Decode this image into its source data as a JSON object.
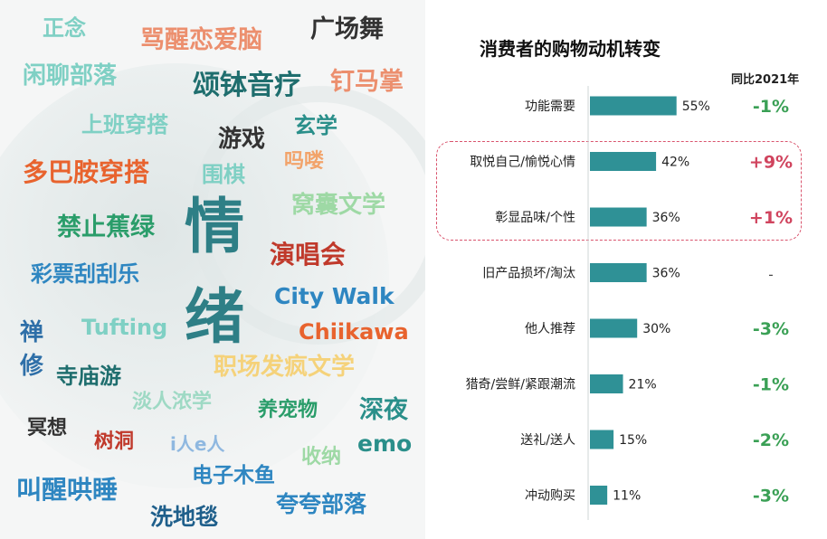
{
  "word_cloud": {
    "center_chars": [
      "情",
      "绪"
    ],
    "words": [
      {
        "text": "正念",
        "color": "#7fd0c4"
      },
      {
        "text": "骂醒恋爱脑",
        "color": "#ec8f6e"
      },
      {
        "text": "广场舞",
        "color": "#333333"
      },
      {
        "text": "闲聊部落",
        "color": "#7fd0c4"
      },
      {
        "text": "颂钵音疗",
        "color": "#1f6e6e"
      },
      {
        "text": "钉马掌",
        "color": "#ec8f6e"
      },
      {
        "text": "上班穿搭",
        "color": "#7fd0c4"
      },
      {
        "text": "游戏",
        "color": "#333333"
      },
      {
        "text": "玄学",
        "color": "#2a8f8a"
      },
      {
        "text": "多巴胺穿搭",
        "color": "#e8632e"
      },
      {
        "text": "吗喽",
        "color": "#f2a36a"
      },
      {
        "text": "围棋",
        "color": "#7fd0c4"
      },
      {
        "text": "窝囊文学",
        "color": "#9ed9a5"
      },
      {
        "text": "禁止蕉绿",
        "color": "#2a9d6a"
      },
      {
        "text": "演唱会",
        "color": "#c0392b"
      },
      {
        "text": "彩票刮刮乐",
        "color": "#2e86c1"
      },
      {
        "text": "City Walk",
        "color": "#2e86c1"
      },
      {
        "text": "Tufting",
        "color": "#7fd0c4"
      },
      {
        "text": "Chiikawa",
        "color": "#e8632e"
      },
      {
        "text": "禅",
        "color": "#2e6fa8"
      },
      {
        "text": "修",
        "color": "#2e6fa8"
      },
      {
        "text": "寺庙游",
        "color": "#1f6e6e"
      },
      {
        "text": "职场发疯文学",
        "color": "#f5d27a"
      },
      {
        "text": "淡人浓学",
        "color": "#9ed9c4"
      },
      {
        "text": "养宠物",
        "color": "#2a9d6a"
      },
      {
        "text": "深夜",
        "color": "#2a8f8a"
      },
      {
        "text": "冥想",
        "color": "#333333"
      },
      {
        "text": "树洞",
        "color": "#c0392b"
      },
      {
        "text": "i人e人",
        "color": "#8fb8e0"
      },
      {
        "text": "emo",
        "color": "#2a8f8a"
      },
      {
        "text": "电子木鱼",
        "color": "#2e86c1"
      },
      {
        "text": "收纳",
        "color": "#9ed9a5"
      },
      {
        "text": "叫醒哄睡",
        "color": "#2e86c1"
      },
      {
        "text": "洗地毯",
        "color": "#1f5f8b"
      },
      {
        "text": "夸夸部落",
        "color": "#2e86c1"
      }
    ]
  },
  "chart": {
    "title": "消费者的购物动机转变",
    "yoy_header": "同比2021年",
    "bar_color": "#2f9196",
    "yoy_negative_color": "#3aa055",
    "yoy_positive_color": "#d0445e"
  },
  "chart_data": {
    "type": "bar",
    "orientation": "horizontal",
    "title": "消费者的购物动机转变",
    "categories": [
      "功能需要",
      "取悦自己/愉悦心情",
      "彰显品味/个性",
      "旧产品损坏/淘汰",
      "他人推荐",
      "猎奇/尝鲜/紧跟潮流",
      "送礼/送人",
      "冲动购买"
    ],
    "values": [
      55,
      42,
      36,
      36,
      30,
      21,
      15,
      11
    ],
    "value_labels": [
      "55%",
      "42%",
      "36%",
      "36%",
      "30%",
      "21%",
      "15%",
      "11%"
    ],
    "yoy_change": [
      "-1%",
      "+9%",
      "+1%",
      "-",
      "-3%",
      "-1%",
      "-2%",
      "-3%"
    ],
    "highlighted_categories": [
      "取悦自己/愉悦心情",
      "彰显品味/个性"
    ],
    "xlim": [
      0,
      100
    ]
  }
}
